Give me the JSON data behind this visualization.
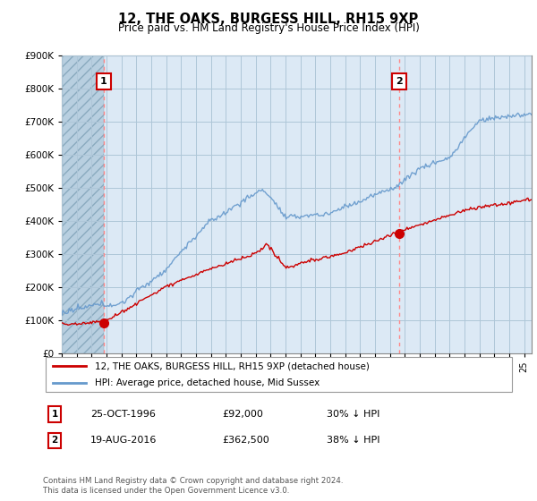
{
  "title": "12, THE OAKS, BURGESS HILL, RH15 9XP",
  "subtitle": "Price paid vs. HM Land Registry's House Price Index (HPI)",
  "ylim": [
    0,
    900000
  ],
  "xlim_start": 1994.0,
  "xlim_end": 2025.5,
  "legend_line1": "12, THE OAKS, BURGESS HILL, RH15 9XP (detached house)",
  "legend_line2": "HPI: Average price, detached house, Mid Sussex",
  "point1_label": "1",
  "point1_date": "25-OCT-1996",
  "point1_price": "£92,000",
  "point1_hpi": "30% ↓ HPI",
  "point1_x": 1996.81,
  "point1_y": 92000,
  "point2_label": "2",
  "point2_date": "19-AUG-2016",
  "point2_price": "£362,500",
  "point2_hpi": "38% ↓ HPI",
  "point2_x": 2016.63,
  "point2_y": 362500,
  "vline1_x": 1996.81,
  "vline2_x": 2016.63,
  "footer": "Contains HM Land Registry data © Crown copyright and database right 2024.\nThis data is licensed under the Open Government Licence v3.0.",
  "hpi_color": "#6699cc",
  "price_color": "#cc0000",
  "plot_bg_color": "#dce9f5",
  "hatch_color": "#b8cfe0",
  "grid_color": "#aec6d8",
  "annotation_box_color": "#cc0000",
  "yticks": [
    0,
    100000,
    200000,
    300000,
    400000,
    500000,
    600000,
    700000,
    800000,
    900000
  ]
}
